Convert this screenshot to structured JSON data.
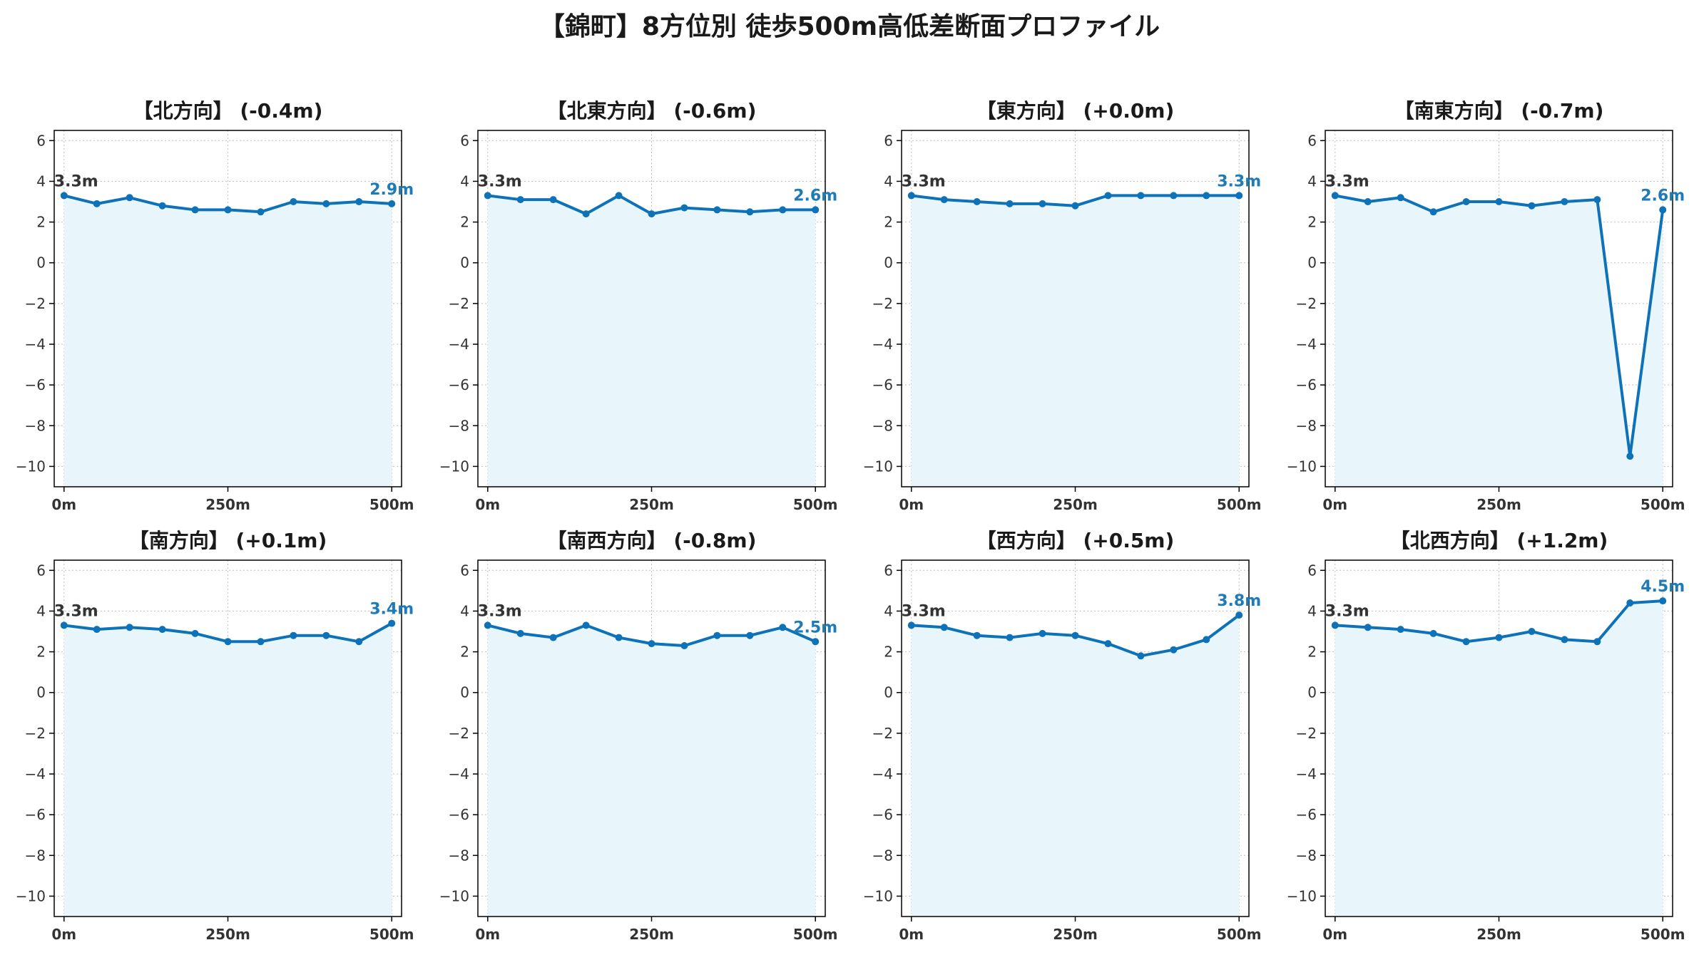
{
  "title": "【錦町】8方位別 徒歩500m高低差断面プロファイル",
  "colors": {
    "line": "#1f77b4",
    "line_dark": "#0e72b8",
    "fill": "#e8f6fb",
    "grid": "#bfbfbf",
    "start_label": "#333333",
    "end_label": "#1f7ab8"
  },
  "chart_data": [
    {
      "type": "area",
      "title": "【北方向】 (-0.4m)",
      "x": [
        0,
        50,
        100,
        150,
        200,
        250,
        300,
        350,
        400,
        450,
        500
      ],
      "values": [
        3.3,
        2.9,
        3.2,
        2.8,
        2.6,
        2.6,
        2.5,
        3.0,
        2.9,
        3.0,
        2.9
      ],
      "start_label": "3.3m",
      "end_label": "2.9m",
      "xticks": [
        "0m",
        "250m",
        "500m"
      ],
      "yticks": [
        6,
        4,
        2,
        0,
        -2,
        -4,
        -6,
        -8,
        -10
      ],
      "xlim": [
        -15,
        515
      ],
      "ylim": [
        -11,
        6.5
      ],
      "grid": true
    },
    {
      "type": "area",
      "title": "【北東方向】 (-0.6m)",
      "x": [
        0,
        50,
        100,
        150,
        200,
        250,
        300,
        350,
        400,
        450,
        500
      ],
      "values": [
        3.3,
        3.1,
        3.1,
        2.4,
        3.3,
        2.4,
        2.7,
        2.6,
        2.5,
        2.6,
        2.6
      ],
      "start_label": "3.3m",
      "end_label": "2.6m",
      "xticks": [
        "0m",
        "250m",
        "500m"
      ],
      "yticks": [
        6,
        4,
        2,
        0,
        -2,
        -4,
        -6,
        -8,
        -10
      ],
      "xlim": [
        -15,
        515
      ],
      "ylim": [
        -11,
        6.5
      ],
      "grid": true
    },
    {
      "type": "area",
      "title": "【東方向】 (+0.0m)",
      "x": [
        0,
        50,
        100,
        150,
        200,
        250,
        300,
        350,
        400,
        450,
        500
      ],
      "values": [
        3.3,
        3.1,
        3.0,
        2.9,
        2.9,
        2.8,
        3.3,
        3.3,
        3.3,
        3.3,
        3.3
      ],
      "start_label": "3.3m",
      "end_label": "3.3m",
      "xticks": [
        "0m",
        "250m",
        "500m"
      ],
      "yticks": [
        6,
        4,
        2,
        0,
        -2,
        -4,
        -6,
        -8,
        -10
      ],
      "xlim": [
        -15,
        515
      ],
      "ylim": [
        -11,
        6.5
      ],
      "grid": true
    },
    {
      "type": "area",
      "title": "【南東方向】 (-0.7m)",
      "x": [
        0,
        50,
        100,
        150,
        200,
        250,
        300,
        350,
        400,
        450,
        500
      ],
      "values": [
        3.3,
        3.0,
        3.2,
        2.5,
        3.0,
        3.0,
        2.8,
        3.0,
        3.1,
        -9.5,
        2.6
      ],
      "start_label": "3.3m",
      "end_label": "2.6m",
      "xticks": [
        "0m",
        "250m",
        "500m"
      ],
      "yticks": [
        6,
        4,
        2,
        0,
        -2,
        -4,
        -6,
        -8,
        -10
      ],
      "xlim": [
        -15,
        515
      ],
      "ylim": [
        -11,
        6.5
      ],
      "grid": true
    },
    {
      "type": "area",
      "title": "【南方向】 (+0.1m)",
      "x": [
        0,
        50,
        100,
        150,
        200,
        250,
        300,
        350,
        400,
        450,
        500
      ],
      "values": [
        3.3,
        3.1,
        3.2,
        3.1,
        2.9,
        2.5,
        2.5,
        2.8,
        2.8,
        2.5,
        3.4
      ],
      "start_label": "3.3m",
      "end_label": "3.4m",
      "xticks": [
        "0m",
        "250m",
        "500m"
      ],
      "yticks": [
        6,
        4,
        2,
        0,
        -2,
        -4,
        -6,
        -8,
        -10
      ],
      "xlim": [
        -15,
        515
      ],
      "ylim": [
        -11,
        6.5
      ],
      "grid": true
    },
    {
      "type": "area",
      "title": "【南西方向】 (-0.8m)",
      "x": [
        0,
        50,
        100,
        150,
        200,
        250,
        300,
        350,
        400,
        450,
        500
      ],
      "values": [
        3.3,
        2.9,
        2.7,
        3.3,
        2.7,
        2.4,
        2.3,
        2.8,
        2.8,
        3.2,
        2.5
      ],
      "start_label": "3.3m",
      "end_label": "2.5m",
      "xticks": [
        "0m",
        "250m",
        "500m"
      ],
      "yticks": [
        6,
        4,
        2,
        0,
        -2,
        -4,
        -6,
        -8,
        -10
      ],
      "xlim": [
        -15,
        515
      ],
      "ylim": [
        -11,
        6.5
      ],
      "grid": true
    },
    {
      "type": "area",
      "title": "【西方向】 (+0.5m)",
      "x": [
        0,
        50,
        100,
        150,
        200,
        250,
        300,
        350,
        400,
        450,
        500
      ],
      "values": [
        3.3,
        3.2,
        2.8,
        2.7,
        2.9,
        2.8,
        2.4,
        1.8,
        2.1,
        2.6,
        3.8
      ],
      "start_label": "3.3m",
      "end_label": "3.8m",
      "xticks": [
        "0m",
        "250m",
        "500m"
      ],
      "yticks": [
        6,
        4,
        2,
        0,
        -2,
        -4,
        -6,
        -8,
        -10
      ],
      "xlim": [
        -15,
        515
      ],
      "ylim": [
        -11,
        6.5
      ],
      "grid": true
    },
    {
      "type": "area",
      "title": "【北西方向】 (+1.2m)",
      "x": [
        0,
        50,
        100,
        150,
        200,
        250,
        300,
        350,
        400,
        450,
        500
      ],
      "values": [
        3.3,
        3.2,
        3.1,
        2.9,
        2.5,
        2.7,
        3.0,
        2.6,
        2.5,
        4.4,
        4.5
      ],
      "start_label": "3.3m",
      "end_label": "4.5m",
      "xticks": [
        "0m",
        "250m",
        "500m"
      ],
      "yticks": [
        6,
        4,
        2,
        0,
        -2,
        -4,
        -6,
        -8,
        -10
      ],
      "xlim": [
        -15,
        515
      ],
      "ylim": [
        -11,
        6.5
      ],
      "grid": true
    }
  ]
}
